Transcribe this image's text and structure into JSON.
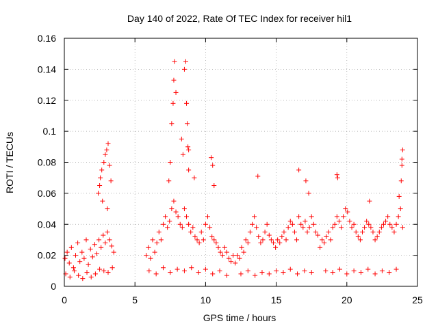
{
  "chart_data": {
    "type": "scatter",
    "title": "Day 140 of 2022, Rate Of TEC Index for receiver hil1",
    "xlabel": "GPS time / hours",
    "ylabel": "ROTI / TECUs",
    "xlim": [
      0,
      25
    ],
    "ylim": [
      0,
      0.16
    ],
    "xticks": [
      0,
      5,
      10,
      15,
      20,
      25
    ],
    "xtick_labels": [
      "0",
      "5",
      "10",
      "15",
      "20",
      "25"
    ],
    "yticks": [
      0,
      0.02,
      0.04,
      0.06,
      0.08,
      0.1,
      0.12,
      0.14,
      0.16
    ],
    "ytick_labels": [
      "0",
      "0.02",
      "0.04",
      "0.06",
      "0.08",
      "0.1",
      "0.12",
      "0.14",
      "0.16"
    ],
    "grid": true,
    "marker": "+",
    "color": "#ff0000",
    "series": [
      {
        "name": "ROTI",
        "x": [
          0.05,
          0.2,
          0.35,
          0.5,
          0.65,
          0.8,
          0.95,
          1.1,
          1.25,
          1.4,
          1.55,
          1.7,
          1.85,
          2.0,
          2.15,
          2.3,
          2.45,
          2.6,
          2.75,
          2.9,
          3.05,
          3.2,
          3.35,
          3.5,
          0.1,
          0.4,
          0.7,
          1.0,
          1.3,
          1.6,
          1.9,
          2.2,
          2.5,
          2.8,
          3.1,
          3.4,
          2.4,
          2.5,
          2.55,
          2.65,
          2.8,
          2.9,
          3.0,
          3.1,
          3.2,
          3.3,
          2.7,
          3.05,
          5.8,
          5.95,
          6.1,
          6.25,
          6.4,
          6.55,
          6.7,
          6.85,
          7.0,
          7.15,
          7.3,
          7.45,
          7.6,
          7.75,
          7.9,
          8.05,
          8.2,
          8.35,
          8.5,
          8.65,
          8.8,
          8.95,
          9.1,
          9.25,
          9.4,
          9.55,
          9.7,
          9.85,
          10.0,
          10.15,
          10.3,
          10.45,
          10.6,
          10.75,
          10.9,
          11.05,
          11.2,
          11.35,
          11.5,
          11.65,
          11.8,
          11.95,
          6.0,
          6.5,
          7.0,
          7.5,
          8.0,
          8.5,
          9.0,
          9.5,
          10.0,
          10.5,
          11.0,
          11.5,
          7.6,
          7.7,
          7.75,
          7.8,
          7.9,
          8.5,
          8.6,
          8.65,
          8.7,
          8.75,
          8.8,
          8.8,
          7.5,
          7.4,
          8.3,
          8.4,
          10.4,
          10.5,
          10.6,
          9.2,
          12.1,
          12.25,
          12.4,
          12.55,
          12.7,
          12.85,
          13.0,
          13.15,
          13.3,
          13.45,
          13.6,
          13.75,
          13.9,
          14.05,
          14.2,
          14.35,
          14.5,
          14.65,
          14.8,
          14.95,
          15.1,
          15.25,
          15.4,
          15.55,
          15.7,
          15.85,
          16.0,
          16.15,
          16.3,
          16.45,
          16.6,
          16.75,
          16.9,
          17.05,
          17.2,
          17.35,
          17.5,
          17.65,
          17.8,
          17.95,
          12.5,
          13.0,
          13.5,
          14.0,
          14.5,
          15.0,
          15.5,
          16.0,
          16.5,
          17.0,
          17.5,
          13.7,
          16.6,
          17.1,
          17.3,
          18.1,
          18.25,
          18.4,
          18.55,
          18.7,
          18.85,
          19.0,
          19.15,
          19.3,
          19.45,
          19.6,
          19.75,
          19.9,
          20.05,
          20.2,
          20.35,
          20.5,
          20.65,
          20.8,
          20.95,
          21.1,
          21.25,
          21.4,
          21.55,
          21.7,
          21.85,
          22.0,
          22.15,
          22.3,
          22.45,
          22.6,
          22.75,
          22.9,
          23.05,
          23.2,
          23.35,
          23.5,
          23.65,
          23.8,
          23.95,
          18.5,
          19.0,
          19.5,
          20.0,
          20.5,
          21.0,
          21.5,
          22.0,
          22.5,
          23.0,
          23.5,
          19.3,
          19.35,
          21.6,
          23.7,
          23.85,
          23.9,
          23.95,
          23.9
        ],
        "y": [
          0.018,
          0.022,
          0.015,
          0.025,
          0.012,
          0.02,
          0.028,
          0.016,
          0.022,
          0.018,
          0.03,
          0.014,
          0.024,
          0.019,
          0.027,
          0.021,
          0.03,
          0.025,
          0.033,
          0.028,
          0.035,
          0.03,
          0.026,
          0.022,
          0.008,
          0.006,
          0.01,
          0.007,
          0.005,
          0.009,
          0.006,
          0.008,
          0.011,
          0.01,
          0.009,
          0.012,
          0.06,
          0.065,
          0.07,
          0.075,
          0.08,
          0.085,
          0.088,
          0.092,
          0.078,
          0.068,
          0.055,
          0.05,
          0.02,
          0.025,
          0.018,
          0.03,
          0.022,
          0.028,
          0.035,
          0.03,
          0.04,
          0.045,
          0.038,
          0.042,
          0.05,
          0.055,
          0.048,
          0.045,
          0.04,
          0.038,
          0.05,
          0.045,
          0.04,
          0.035,
          0.038,
          0.032,
          0.03,
          0.028,
          0.035,
          0.03,
          0.04,
          0.045,
          0.038,
          0.032,
          0.03,
          0.028,
          0.025,
          0.022,
          0.02,
          0.025,
          0.022,
          0.018,
          0.016,
          0.02,
          0.01,
          0.008,
          0.012,
          0.009,
          0.011,
          0.01,
          0.012,
          0.009,
          0.011,
          0.008,
          0.01,
          0.007,
          0.105,
          0.118,
          0.133,
          0.145,
          0.125,
          0.14,
          0.145,
          0.118,
          0.105,
          0.09,
          0.075,
          0.088,
          0.08,
          0.068,
          0.095,
          0.085,
          0.083,
          0.078,
          0.065,
          0.07,
          0.015,
          0.02,
          0.018,
          0.025,
          0.022,
          0.03,
          0.028,
          0.035,
          0.04,
          0.045,
          0.038,
          0.032,
          0.028,
          0.03,
          0.035,
          0.04,
          0.033,
          0.03,
          0.028,
          0.025,
          0.03,
          0.028,
          0.032,
          0.035,
          0.03,
          0.038,
          0.042,
          0.04,
          0.035,
          0.03,
          0.045,
          0.04,
          0.038,
          0.042,
          0.035,
          0.038,
          0.045,
          0.04,
          0.035,
          0.033,
          0.008,
          0.01,
          0.007,
          0.009,
          0.008,
          0.01,
          0.009,
          0.011,
          0.008,
          0.01,
          0.009,
          0.071,
          0.075,
          0.068,
          0.06,
          0.025,
          0.03,
          0.028,
          0.032,
          0.035,
          0.03,
          0.038,
          0.04,
          0.045,
          0.042,
          0.038,
          0.045,
          0.05,
          0.048,
          0.042,
          0.038,
          0.04,
          0.035,
          0.032,
          0.03,
          0.035,
          0.038,
          0.042,
          0.04,
          0.038,
          0.035,
          0.03,
          0.032,
          0.035,
          0.038,
          0.04,
          0.042,
          0.045,
          0.04,
          0.038,
          0.035,
          0.04,
          0.045,
          0.05,
          0.038,
          0.01,
          0.009,
          0.011,
          0.008,
          0.01,
          0.009,
          0.011,
          0.008,
          0.01,
          0.009,
          0.011,
          0.072,
          0.07,
          0.055,
          0.058,
          0.068,
          0.078,
          0.088,
          0.082
        ]
      }
    ]
  }
}
